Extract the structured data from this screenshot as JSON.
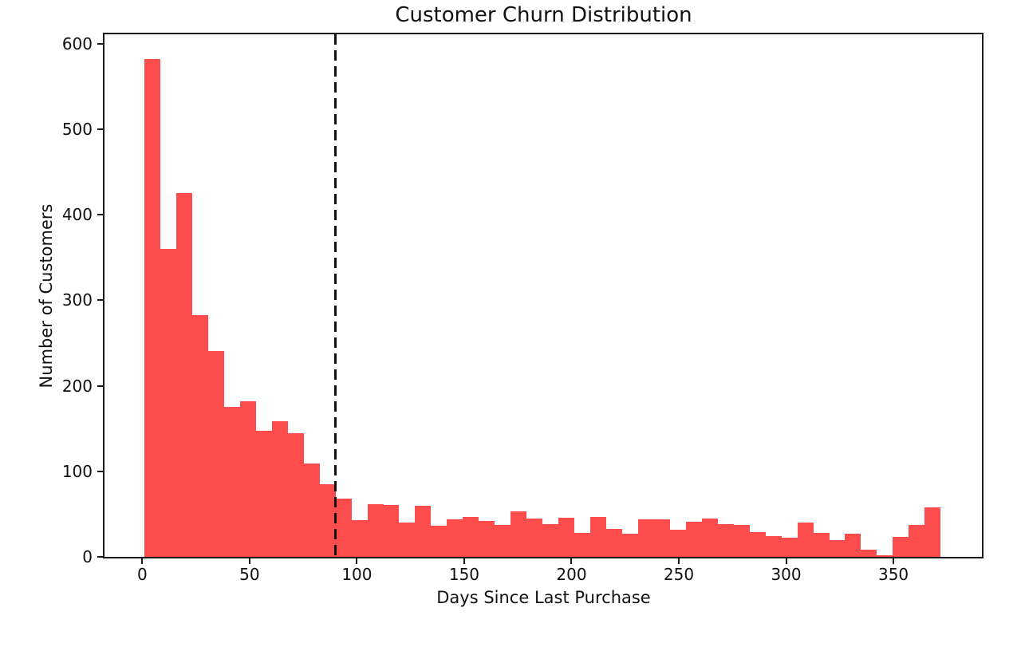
{
  "chart_data": {
    "type": "bar",
    "subtype": "histogram",
    "title": "Customer Churn Distribution",
    "xlabel": "Days Since Last Purchase",
    "ylabel": "Number of Customers",
    "bar_color": "#fc4c4c",
    "axis_color": "#1a1a1a",
    "text_color": "#111111",
    "background_color": "#ffffff",
    "grid": false,
    "legend": false,
    "xlim": [
      -17.6,
      391.6
    ],
    "ylim": [
      0,
      611
    ],
    "x_ticks": [
      0,
      50,
      100,
      150,
      200,
      250,
      300,
      350
    ],
    "y_ticks": [
      0,
      100,
      200,
      300,
      400,
      500,
      600
    ],
    "bin_start": 1.0,
    "bin_width": 7.42,
    "counts": [
      582,
      360,
      425,
      283,
      241,
      175,
      182,
      147,
      159,
      145,
      109,
      85,
      68,
      43,
      62,
      61,
      40,
      60,
      36,
      44,
      47,
      42,
      37,
      53,
      45,
      38,
      46,
      28,
      47,
      33,
      27,
      44,
      44,
      32,
      41,
      45,
      38,
      37,
      29,
      24,
      22,
      40,
      28,
      20,
      27,
      8,
      2,
      23,
      37,
      58
    ],
    "vline": {
      "x": 90,
      "color": "#111111",
      "style": "dashed"
    }
  }
}
